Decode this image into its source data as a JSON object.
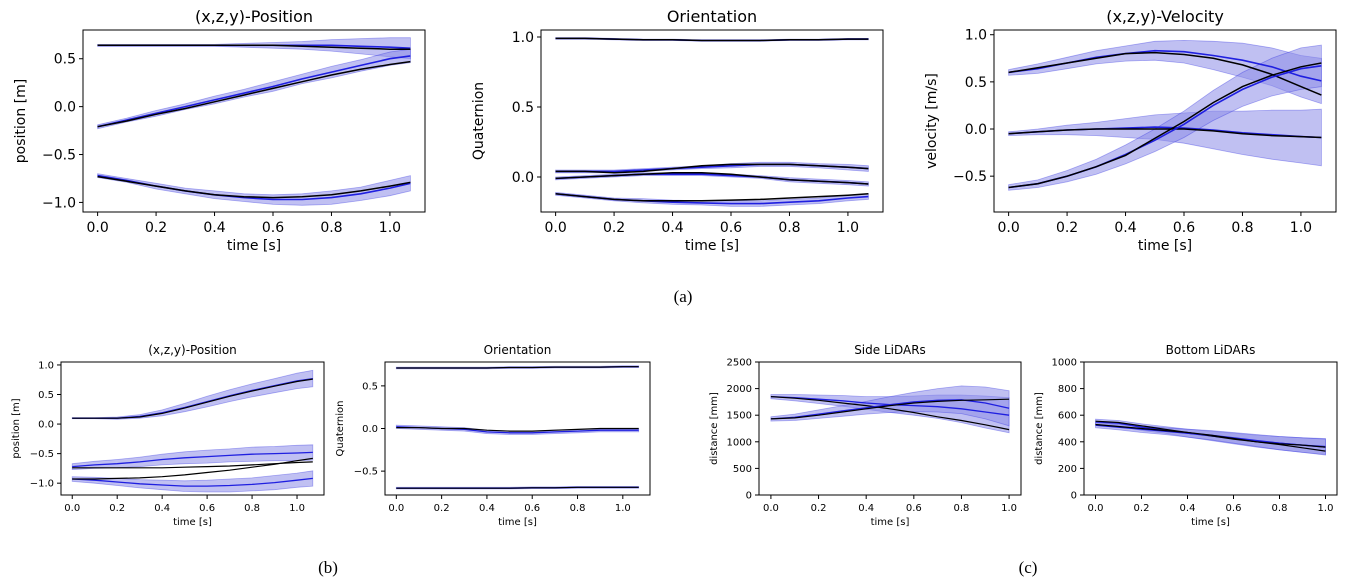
{
  "captions": [
    "(a)",
    "(b)",
    "(c)"
  ],
  "colors": {
    "pred": "#1f1fe0",
    "band": "#8c8ce8",
    "truth": "#000000"
  },
  "chart_data": [
    {
      "type": "line",
      "title": "(x,z,y)-Position",
      "xlabel": "time [s]",
      "ylabel": "position [m]",
      "xlim": [
        -0.05,
        1.12
      ],
      "ylim": [
        -1.1,
        0.8
      ],
      "xticks": [
        0.0,
        0.2,
        0.4,
        0.6,
        0.8,
        1.0
      ],
      "yticks": [
        -1.0,
        -0.5,
        0.0,
        0.5
      ],
      "x": [
        0,
        0.1,
        0.2,
        0.3,
        0.4,
        0.5,
        0.6,
        0.7,
        0.8,
        0.9,
        1.0,
        1.07
      ],
      "series": [
        {
          "truth": [
            0.64,
            0.64,
            0.64,
            0.64,
            0.64,
            0.64,
            0.64,
            0.63,
            0.62,
            0.61,
            0.6,
            0.6
          ],
          "pred": [
            0.64,
            0.64,
            0.64,
            0.64,
            0.64,
            0.64,
            0.64,
            0.64,
            0.64,
            0.63,
            0.62,
            0.61
          ],
          "std": [
            0.01,
            0.01,
            0.01,
            0.01,
            0.01,
            0.02,
            0.03,
            0.04,
            0.06,
            0.08,
            0.1,
            0.11
          ]
        },
        {
          "truth": [
            -0.21,
            -0.15,
            -0.08,
            -0.02,
            0.05,
            0.12,
            0.19,
            0.26,
            0.33,
            0.39,
            0.44,
            0.47
          ],
          "pred": [
            -0.21,
            -0.14,
            -0.07,
            0.0,
            0.07,
            0.14,
            0.21,
            0.29,
            0.36,
            0.43,
            0.5,
            0.53
          ],
          "std": [
            0.02,
            0.02,
            0.03,
            0.03,
            0.04,
            0.04,
            0.05,
            0.05,
            0.06,
            0.06,
            0.07,
            0.07
          ]
        },
        {
          "truth": [
            -0.73,
            -0.78,
            -0.83,
            -0.88,
            -0.92,
            -0.94,
            -0.95,
            -0.94,
            -0.92,
            -0.88,
            -0.83,
            -0.79
          ],
          "pred": [
            -0.72,
            -0.77,
            -0.83,
            -0.88,
            -0.92,
            -0.95,
            -0.97,
            -0.97,
            -0.95,
            -0.91,
            -0.85,
            -0.8
          ],
          "std": [
            0.02,
            0.02,
            0.03,
            0.03,
            0.04,
            0.04,
            0.05,
            0.06,
            0.07,
            0.07,
            0.08,
            0.08
          ]
        }
      ]
    },
    {
      "type": "line",
      "title": "Orientation",
      "xlabel": "time [s]",
      "ylabel": "Quaternion",
      "xlim": [
        -0.05,
        1.12
      ],
      "ylim": [
        -0.25,
        1.05
      ],
      "xticks": [
        0.0,
        0.2,
        0.4,
        0.6,
        0.8,
        1.0
      ],
      "yticks": [
        0.0,
        0.5,
        1.0
      ],
      "x": [
        0,
        0.1,
        0.2,
        0.3,
        0.4,
        0.5,
        0.6,
        0.7,
        0.8,
        0.9,
        1.0,
        1.07
      ],
      "series": [
        {
          "truth": [
            0.99,
            0.99,
            0.985,
            0.98,
            0.98,
            0.975,
            0.975,
            0.975,
            0.98,
            0.98,
            0.985,
            0.985
          ],
          "pred": [
            0.99,
            0.99,
            0.985,
            0.98,
            0.98,
            0.975,
            0.975,
            0.975,
            0.98,
            0.98,
            0.985,
            0.985
          ],
          "std": [
            0.005,
            0.005,
            0.005,
            0.005,
            0.005,
            0.005,
            0.005,
            0.005,
            0.005,
            0.005,
            0.005,
            0.005
          ]
        },
        {
          "truth": [
            0.04,
            0.04,
            0.03,
            0.04,
            0.06,
            0.08,
            0.09,
            0.09,
            0.09,
            0.08,
            0.07,
            0.06
          ],
          "pred": [
            0.04,
            0.04,
            0.04,
            0.05,
            0.06,
            0.07,
            0.08,
            0.09,
            0.09,
            0.08,
            0.07,
            0.06
          ],
          "std": [
            0.01,
            0.01,
            0.01,
            0.01,
            0.01,
            0.01,
            0.015,
            0.015,
            0.015,
            0.015,
            0.02,
            0.02
          ]
        },
        {
          "truth": [
            -0.01,
            0.0,
            0.01,
            0.02,
            0.03,
            0.03,
            0.02,
            0.0,
            -0.02,
            -0.03,
            -0.04,
            -0.05
          ],
          "pred": [
            -0.01,
            0.0,
            0.01,
            0.02,
            0.02,
            0.02,
            0.01,
            0.0,
            -0.02,
            -0.03,
            -0.04,
            -0.05
          ],
          "std": [
            0.01,
            0.01,
            0.01,
            0.01,
            0.01,
            0.01,
            0.01,
            0.01,
            0.015,
            0.015,
            0.015,
            0.015
          ]
        },
        {
          "truth": [
            -0.12,
            -0.14,
            -0.16,
            -0.17,
            -0.17,
            -0.17,
            -0.165,
            -0.16,
            -0.15,
            -0.14,
            -0.13,
            -0.12
          ],
          "pred": [
            -0.12,
            -0.14,
            -0.16,
            -0.17,
            -0.18,
            -0.185,
            -0.19,
            -0.19,
            -0.18,
            -0.17,
            -0.15,
            -0.14
          ],
          "std": [
            0.01,
            0.01,
            0.01,
            0.015,
            0.015,
            0.015,
            0.02,
            0.02,
            0.02,
            0.02,
            0.02,
            0.02
          ]
        }
      ]
    },
    {
      "type": "line",
      "title": "(x,z,y)-Velocity",
      "xlabel": "time [s]",
      "ylabel": "velocity [m/s]",
      "xlim": [
        -0.05,
        1.12
      ],
      "ylim": [
        -0.88,
        1.05
      ],
      "xticks": [
        0.0,
        0.2,
        0.4,
        0.6,
        0.8,
        1.0
      ],
      "yticks": [
        -0.5,
        0.0,
        0.5,
        1.0
      ],
      "x": [
        0,
        0.1,
        0.2,
        0.3,
        0.4,
        0.5,
        0.6,
        0.7,
        0.8,
        0.9,
        1.0,
        1.07
      ],
      "series": [
        {
          "truth": [
            0.6,
            0.65,
            0.7,
            0.75,
            0.8,
            0.81,
            0.79,
            0.75,
            0.68,
            0.58,
            0.45,
            0.36
          ],
          "pred": [
            0.6,
            0.64,
            0.7,
            0.76,
            0.8,
            0.83,
            0.82,
            0.78,
            0.73,
            0.66,
            0.56,
            0.51
          ],
          "std": [
            0.03,
            0.05,
            0.06,
            0.07,
            0.08,
            0.1,
            0.12,
            0.15,
            0.18,
            0.2,
            0.22,
            0.24
          ]
        },
        {
          "truth": [
            -0.05,
            -0.03,
            -0.01,
            0.0,
            0.0,
            0.0,
            0.0,
            -0.02,
            -0.05,
            -0.07,
            -0.08,
            -0.09
          ],
          "pred": [
            -0.05,
            -0.03,
            -0.01,
            0.0,
            0.01,
            0.02,
            0.01,
            -0.01,
            -0.04,
            -0.06,
            -0.08,
            -0.09
          ],
          "std": [
            0.02,
            0.03,
            0.05,
            0.07,
            0.1,
            0.13,
            0.16,
            0.2,
            0.23,
            0.26,
            0.28,
            0.3
          ]
        },
        {
          "truth": [
            -0.62,
            -0.58,
            -0.5,
            -0.4,
            -0.28,
            -0.1,
            0.08,
            0.28,
            0.45,
            0.57,
            0.66,
            0.7
          ],
          "pred": [
            -0.62,
            -0.58,
            -0.5,
            -0.4,
            -0.27,
            -0.12,
            0.05,
            0.25,
            0.42,
            0.55,
            0.64,
            0.67
          ],
          "std": [
            0.03,
            0.04,
            0.06,
            0.08,
            0.1,
            0.12,
            0.14,
            0.16,
            0.18,
            0.2,
            0.22,
            0.22
          ]
        }
      ]
    },
    {
      "type": "line",
      "title": "(x,z,y)-Position",
      "xlabel": "time [s]",
      "ylabel": "position [m]",
      "xlim": [
        -0.05,
        1.12
      ],
      "ylim": [
        -1.2,
        1.05
      ],
      "xticks": [
        0.0,
        0.2,
        0.4,
        0.6,
        0.8,
        1.0
      ],
      "yticks": [
        -1.0,
        -0.5,
        0.0,
        0.5,
        1.0
      ],
      "x": [
        0,
        0.1,
        0.2,
        0.3,
        0.4,
        0.5,
        0.6,
        0.7,
        0.8,
        0.9,
        1.0,
        1.07
      ],
      "series": [
        {
          "truth": [
            0.1,
            0.1,
            0.1,
            0.12,
            0.18,
            0.27,
            0.37,
            0.47,
            0.56,
            0.64,
            0.72,
            0.76
          ],
          "pred": [
            0.1,
            0.1,
            0.1,
            0.13,
            0.19,
            0.28,
            0.38,
            0.48,
            0.57,
            0.65,
            0.73,
            0.77
          ],
          "std": [
            0.01,
            0.01,
            0.02,
            0.03,
            0.05,
            0.07,
            0.09,
            0.1,
            0.11,
            0.12,
            0.13,
            0.14
          ]
        },
        {
          "truth": [
            -0.74,
            -0.74,
            -0.74,
            -0.74,
            -0.74,
            -0.73,
            -0.72,
            -0.71,
            -0.69,
            -0.67,
            -0.65,
            -0.64
          ],
          "pred": [
            -0.72,
            -0.69,
            -0.67,
            -0.64,
            -0.6,
            -0.57,
            -0.55,
            -0.53,
            -0.51,
            -0.5,
            -0.49,
            -0.48
          ],
          "std": [
            0.05,
            0.06,
            0.07,
            0.08,
            0.09,
            0.1,
            0.11,
            0.11,
            0.12,
            0.12,
            0.13,
            0.13
          ]
        },
        {
          "truth": [
            -0.93,
            -0.93,
            -0.92,
            -0.91,
            -0.89,
            -0.86,
            -0.82,
            -0.78,
            -0.73,
            -0.68,
            -0.62,
            -0.58
          ],
          "pred": [
            -0.93,
            -0.95,
            -0.98,
            -1.01,
            -1.03,
            -1.05,
            -1.05,
            -1.04,
            -1.02,
            -0.99,
            -0.95,
            -0.92
          ],
          "std": [
            0.04,
            0.05,
            0.06,
            0.07,
            0.08,
            0.09,
            0.1,
            0.11,
            0.11,
            0.12,
            0.12,
            0.13
          ]
        }
      ]
    },
    {
      "type": "line",
      "title": "Orientation",
      "xlabel": "time [s]",
      "ylabel": "Quaternion",
      "xlim": [
        -0.05,
        1.12
      ],
      "ylim": [
        -0.78,
        0.78
      ],
      "xticks": [
        0.0,
        0.2,
        0.4,
        0.6,
        0.8,
        1.0
      ],
      "yticks": [
        -0.5,
        0.0,
        0.5
      ],
      "x": [
        0,
        0.1,
        0.2,
        0.3,
        0.4,
        0.5,
        0.6,
        0.7,
        0.8,
        0.9,
        1.0,
        1.07
      ],
      "series": [
        {
          "truth": [
            0.71,
            0.71,
            0.71,
            0.71,
            0.71,
            0.715,
            0.715,
            0.72,
            0.72,
            0.72,
            0.725,
            0.725
          ],
          "pred": [
            0.71,
            0.71,
            0.71,
            0.71,
            0.71,
            0.715,
            0.715,
            0.72,
            0.72,
            0.72,
            0.725,
            0.725
          ],
          "std": [
            0.01,
            0.01,
            0.01,
            0.01,
            0.01,
            0.01,
            0.01,
            0.01,
            0.01,
            0.01,
            0.01,
            0.01
          ]
        },
        {
          "truth": [
            0.01,
            0.01,
            0.0,
            0.0,
            -0.02,
            -0.03,
            -0.03,
            -0.02,
            -0.01,
            0.0,
            0.0,
            0.0
          ],
          "pred": [
            0.02,
            0.01,
            0.0,
            -0.01,
            -0.04,
            -0.05,
            -0.05,
            -0.04,
            -0.03,
            -0.02,
            -0.02,
            -0.02
          ],
          "std": [
            0.02,
            0.02,
            0.02,
            0.02,
            0.02,
            0.02,
            0.02,
            0.02,
            0.02,
            0.02,
            0.02,
            0.02
          ]
        },
        {
          "truth": [
            -0.7,
            -0.7,
            -0.7,
            -0.7,
            -0.7,
            -0.7,
            -0.695,
            -0.695,
            -0.69,
            -0.69,
            -0.69,
            -0.69
          ],
          "pred": [
            -0.7,
            -0.7,
            -0.7,
            -0.7,
            -0.7,
            -0.7,
            -0.695,
            -0.695,
            -0.69,
            -0.69,
            -0.69,
            -0.69
          ],
          "std": [
            0.01,
            0.01,
            0.01,
            0.01,
            0.01,
            0.01,
            0.01,
            0.01,
            0.01,
            0.01,
            0.01,
            0.01
          ]
        }
      ]
    },
    {
      "type": "line",
      "title": "Side LiDARs",
      "xlabel": "time [s]",
      "ylabel": "distance [mm]",
      "xlim": [
        -0.05,
        1.05
      ],
      "ylim": [
        0,
        2500
      ],
      "xticks": [
        0.0,
        0.2,
        0.4,
        0.6,
        0.8,
        1.0
      ],
      "yticks": [
        0,
        500,
        1000,
        1500,
        2000,
        2500
      ],
      "x": [
        0,
        0.1,
        0.2,
        0.3,
        0.4,
        0.5,
        0.6,
        0.7,
        0.8,
        0.9,
        1.0
      ],
      "series": [
        {
          "truth": [
            1850,
            1820,
            1780,
            1730,
            1680,
            1620,
            1550,
            1470,
            1400,
            1320,
            1230
          ],
          "pred": [
            1850,
            1830,
            1800,
            1770,
            1730,
            1700,
            1680,
            1660,
            1620,
            1560,
            1500
          ],
          "std": [
            40,
            60,
            80,
            100,
            120,
            150,
            180,
            220,
            260,
            300,
            330
          ]
        },
        {
          "truth": [
            1430,
            1450,
            1500,
            1560,
            1620,
            1680,
            1730,
            1760,
            1780,
            1790,
            1800
          ],
          "pred": [
            1430,
            1460,
            1520,
            1580,
            1640,
            1700,
            1750,
            1780,
            1790,
            1730,
            1630
          ],
          "std": [
            40,
            60,
            80,
            100,
            120,
            150,
            180,
            220,
            260,
            300,
            330
          ]
        }
      ]
    },
    {
      "type": "line",
      "title": "Bottom LiDARs",
      "xlabel": "time [s]",
      "ylabel": "distance [mm]",
      "xlim": [
        -0.05,
        1.05
      ],
      "ylim": [
        0,
        1000
      ],
      "xticks": [
        0.0,
        0.2,
        0.4,
        0.6,
        0.8,
        1.0
      ],
      "yticks": [
        0,
        200,
        400,
        600,
        800,
        1000
      ],
      "x": [
        0,
        0.1,
        0.2,
        0.3,
        0.4,
        0.5,
        0.6,
        0.7,
        0.8,
        0.9,
        1.0
      ],
      "series": [
        {
          "truth": [
            555,
            545,
            520,
            495,
            470,
            445,
            420,
            400,
            380,
            355,
            330
          ],
          "pred": [
            550,
            540,
            510,
            490,
            465,
            445,
            425,
            405,
            390,
            375,
            365
          ],
          "std": [
            20,
            20,
            25,
            25,
            30,
            35,
            40,
            45,
            50,
            55,
            60
          ]
        },
        {
          "truth": [
            530,
            515,
            500,
            485,
            470,
            450,
            425,
            400,
            385,
            375,
            360
          ],
          "pred": [
            525,
            510,
            495,
            480,
            465,
            450,
            430,
            410,
            390,
            375,
            360
          ],
          "std": [
            20,
            20,
            25,
            25,
            30,
            35,
            40,
            45,
            50,
            55,
            60
          ]
        }
      ]
    }
  ]
}
